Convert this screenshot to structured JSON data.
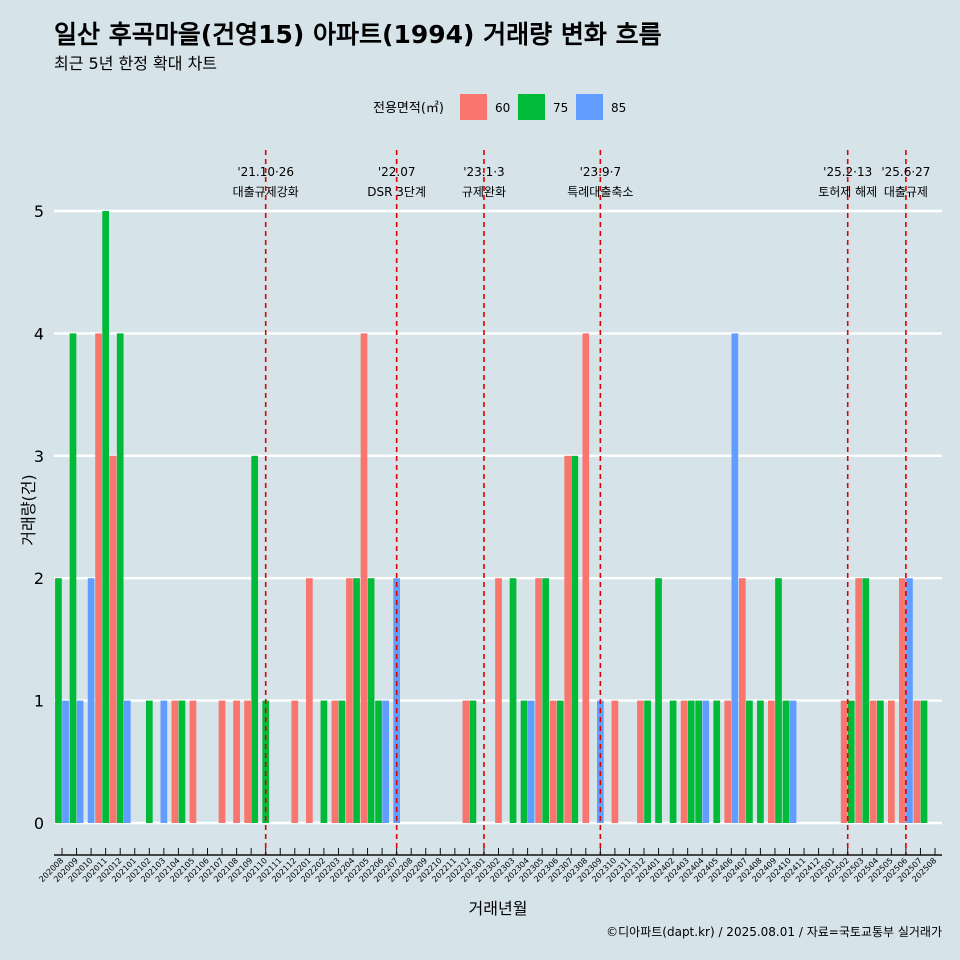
{
  "chart_data": {
    "type": "bar",
    "title": "일산 후곡마을(건영15) 아파트(1994) 거래량 변화 흐름",
    "subtitle": "최근 5년 한정 확대 차트",
    "xlabel": "거래년월",
    "ylabel": "거래량(건)",
    "ylim": [
      0,
      5
    ],
    "yticks": [
      0,
      1,
      2,
      3,
      4,
      5
    ],
    "grid": true,
    "legend": {
      "title": "전용면적(㎡)",
      "position": "top"
    },
    "caption": "©디아파트(dapt.kr) / 2025.08.01 / 자료=국토교통부 실거래가",
    "categories": [
      "202008",
      "202009",
      "202010",
      "202011",
      "202012",
      "202101",
      "202102",
      "202103",
      "202104",
      "202105",
      "202106",
      "202107",
      "202108",
      "202109",
      "202110",
      "202111",
      "202112",
      "202201",
      "202202",
      "202203",
      "202204",
      "202205",
      "202206",
      "202207",
      "202208",
      "202209",
      "202210",
      "202211",
      "202212",
      "202301",
      "202302",
      "202303",
      "202304",
      "202305",
      "202306",
      "202307",
      "202308",
      "202309",
      "202310",
      "202311",
      "202312",
      "202401",
      "202402",
      "202403",
      "202404",
      "202405",
      "202406",
      "202407",
      "202408",
      "202409",
      "202410",
      "202411",
      "202412",
      "202501",
      "202502",
      "202503",
      "202504",
      "202505",
      "202506",
      "202507",
      "202508"
    ],
    "series": [
      {
        "name": "60",
        "color": "#f8766d",
        "values": [
          0,
          0,
          0,
          4,
          3,
          0,
          0,
          0,
          1,
          1,
          0,
          1,
          1,
          1,
          0,
          0,
          1,
          2,
          0,
          1,
          2,
          4,
          0,
          0,
          0,
          0,
          0,
          0,
          1,
          0,
          2,
          0,
          0,
          2,
          1,
          3,
          4,
          0,
          1,
          0,
          1,
          0,
          0,
          1,
          0,
          0,
          1,
          2,
          0,
          1,
          0,
          0,
          0,
          0,
          1,
          2,
          1,
          1,
          2,
          1,
          0
        ]
      },
      {
        "name": "75",
        "color": "#00ba38",
        "values": [
          2,
          4,
          0,
          5,
          4,
          0,
          1,
          0,
          1,
          0,
          0,
          0,
          0,
          3,
          1,
          0,
          0,
          0,
          1,
          1,
          2,
          2,
          1,
          0,
          0,
          0,
          0,
          0,
          1,
          0,
          0,
          2,
          1,
          2,
          1,
          3,
          0,
          0,
          0,
          0,
          1,
          2,
          1,
          1,
          1,
          1,
          0,
          1,
          1,
          2,
          1,
          0,
          0,
          0,
          1,
          2,
          1,
          0,
          0,
          1,
          0
        ]
      },
      {
        "name": "85",
        "color": "#619cff",
        "values": [
          1,
          1,
          2,
          3,
          1,
          0,
          0,
          1,
          0,
          0,
          0,
          0,
          0,
          0,
          0,
          0,
          0,
          0,
          0,
          0,
          0,
          0,
          1,
          2,
          0,
          0,
          0,
          0,
          0,
          0,
          0,
          0,
          1,
          0,
          0,
          0,
          0,
          1,
          0,
          0,
          0,
          0,
          0,
          0,
          1,
          0,
          4,
          0,
          0,
          0,
          1,
          0,
          0,
          0,
          0,
          0,
          0,
          0,
          2,
          0,
          0
        ]
      }
    ],
    "annotations": [
      {
        "label": "'21.10·26",
        "sub": "대출규제강화",
        "at": "202110"
      },
      {
        "label": "'22.07",
        "sub": "DSR 3단계",
        "at": "202207"
      },
      {
        "label": "'23.1·3",
        "sub": "규제완화",
        "at": "202301"
      },
      {
        "label": "'23.9·7",
        "sub": "특례대출축소",
        "at": "202309"
      },
      {
        "label": "'25.2·13",
        "sub": "토허제 해제",
        "at": "202502"
      },
      {
        "label": "'25.6·27",
        "sub": "대출규제",
        "at": "202506"
      }
    ],
    "annotation_color": "#e00000"
  }
}
